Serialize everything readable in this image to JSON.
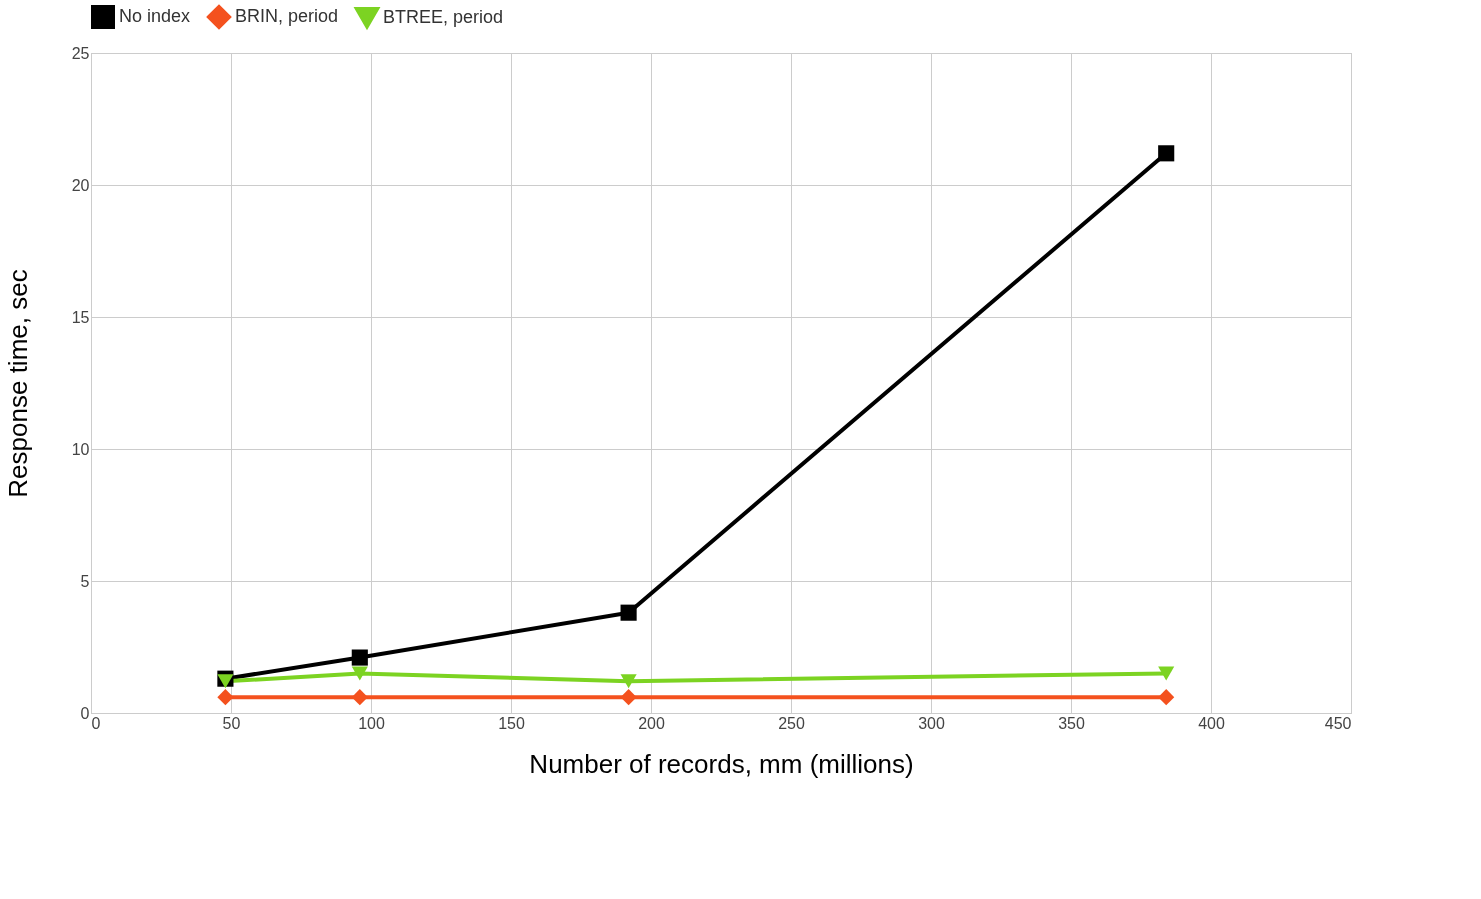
{
  "chart_data": {
    "type": "line",
    "xlabel": "Number of records, mm (millions)",
    "ylabel": "Response time, sec",
    "x": [
      48,
      96,
      192,
      384
    ],
    "series": [
      {
        "name": "No index",
        "color": "#000000",
        "marker": "square",
        "values": [
          1.3,
          2.1,
          3.8,
          21.2
        ]
      },
      {
        "name": "BRIN, period",
        "color": "#f4511e",
        "marker": "diamond",
        "values": [
          0.6,
          0.6,
          0.6,
          0.6
        ]
      },
      {
        "name": "BTREE, period",
        "color": "#7cd322",
        "marker": "triangle",
        "values": [
          1.2,
          1.5,
          1.2,
          1.5
        ]
      }
    ],
    "xlim": [
      0,
      450
    ],
    "xticks": [
      0,
      50,
      100,
      150,
      200,
      250,
      300,
      350,
      400,
      450
    ],
    "ylim": [
      0,
      25
    ],
    "yticks": [
      0,
      5,
      10,
      15,
      20,
      25
    ],
    "grid": true,
    "legend": "top",
    "line_style": "solid"
  }
}
